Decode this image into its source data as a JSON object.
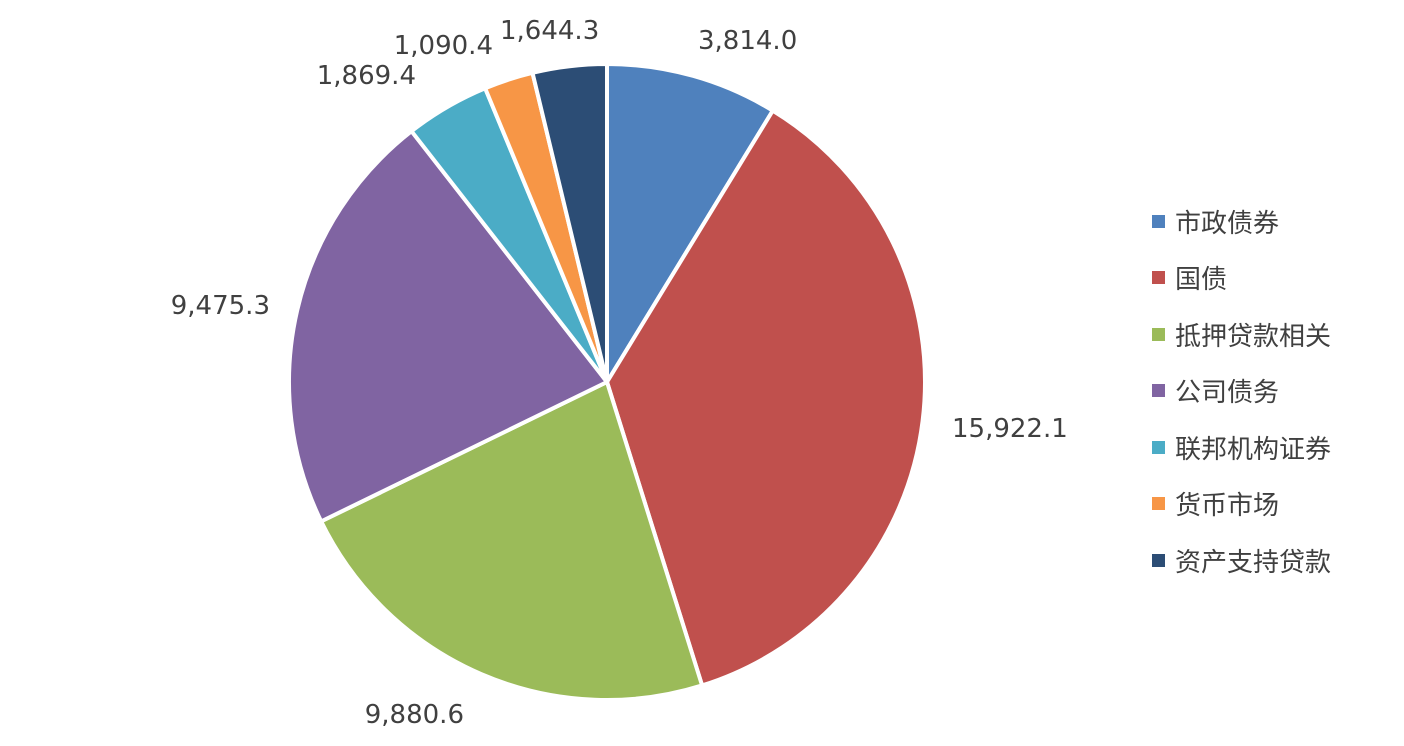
{
  "chart_data": {
    "type": "pie",
    "title": "",
    "categories": [
      "市政债券",
      "国债",
      "抵押贷款相关",
      "公司债务",
      "联邦机构证券",
      "货币市场",
      "资产支持贷款"
    ],
    "values": [
      3814.0,
      15922.1,
      9880.6,
      9475.3,
      1869.4,
      1090.4,
      1644.3
    ],
    "value_labels": [
      "3,814.0",
      "15,922.1",
      "9,880.6",
      "9,475.3",
      "1,869.4",
      "1,090.4",
      "1,644.3"
    ],
    "colors": [
      "#4f81bd",
      "#c0504d",
      "#9bbb59",
      "#8064a2",
      "#4bacc6",
      "#f79646",
      "#2c4d75"
    ],
    "start_angle": "12 o'clock",
    "direction": "clockwise",
    "legend_position": "right"
  }
}
